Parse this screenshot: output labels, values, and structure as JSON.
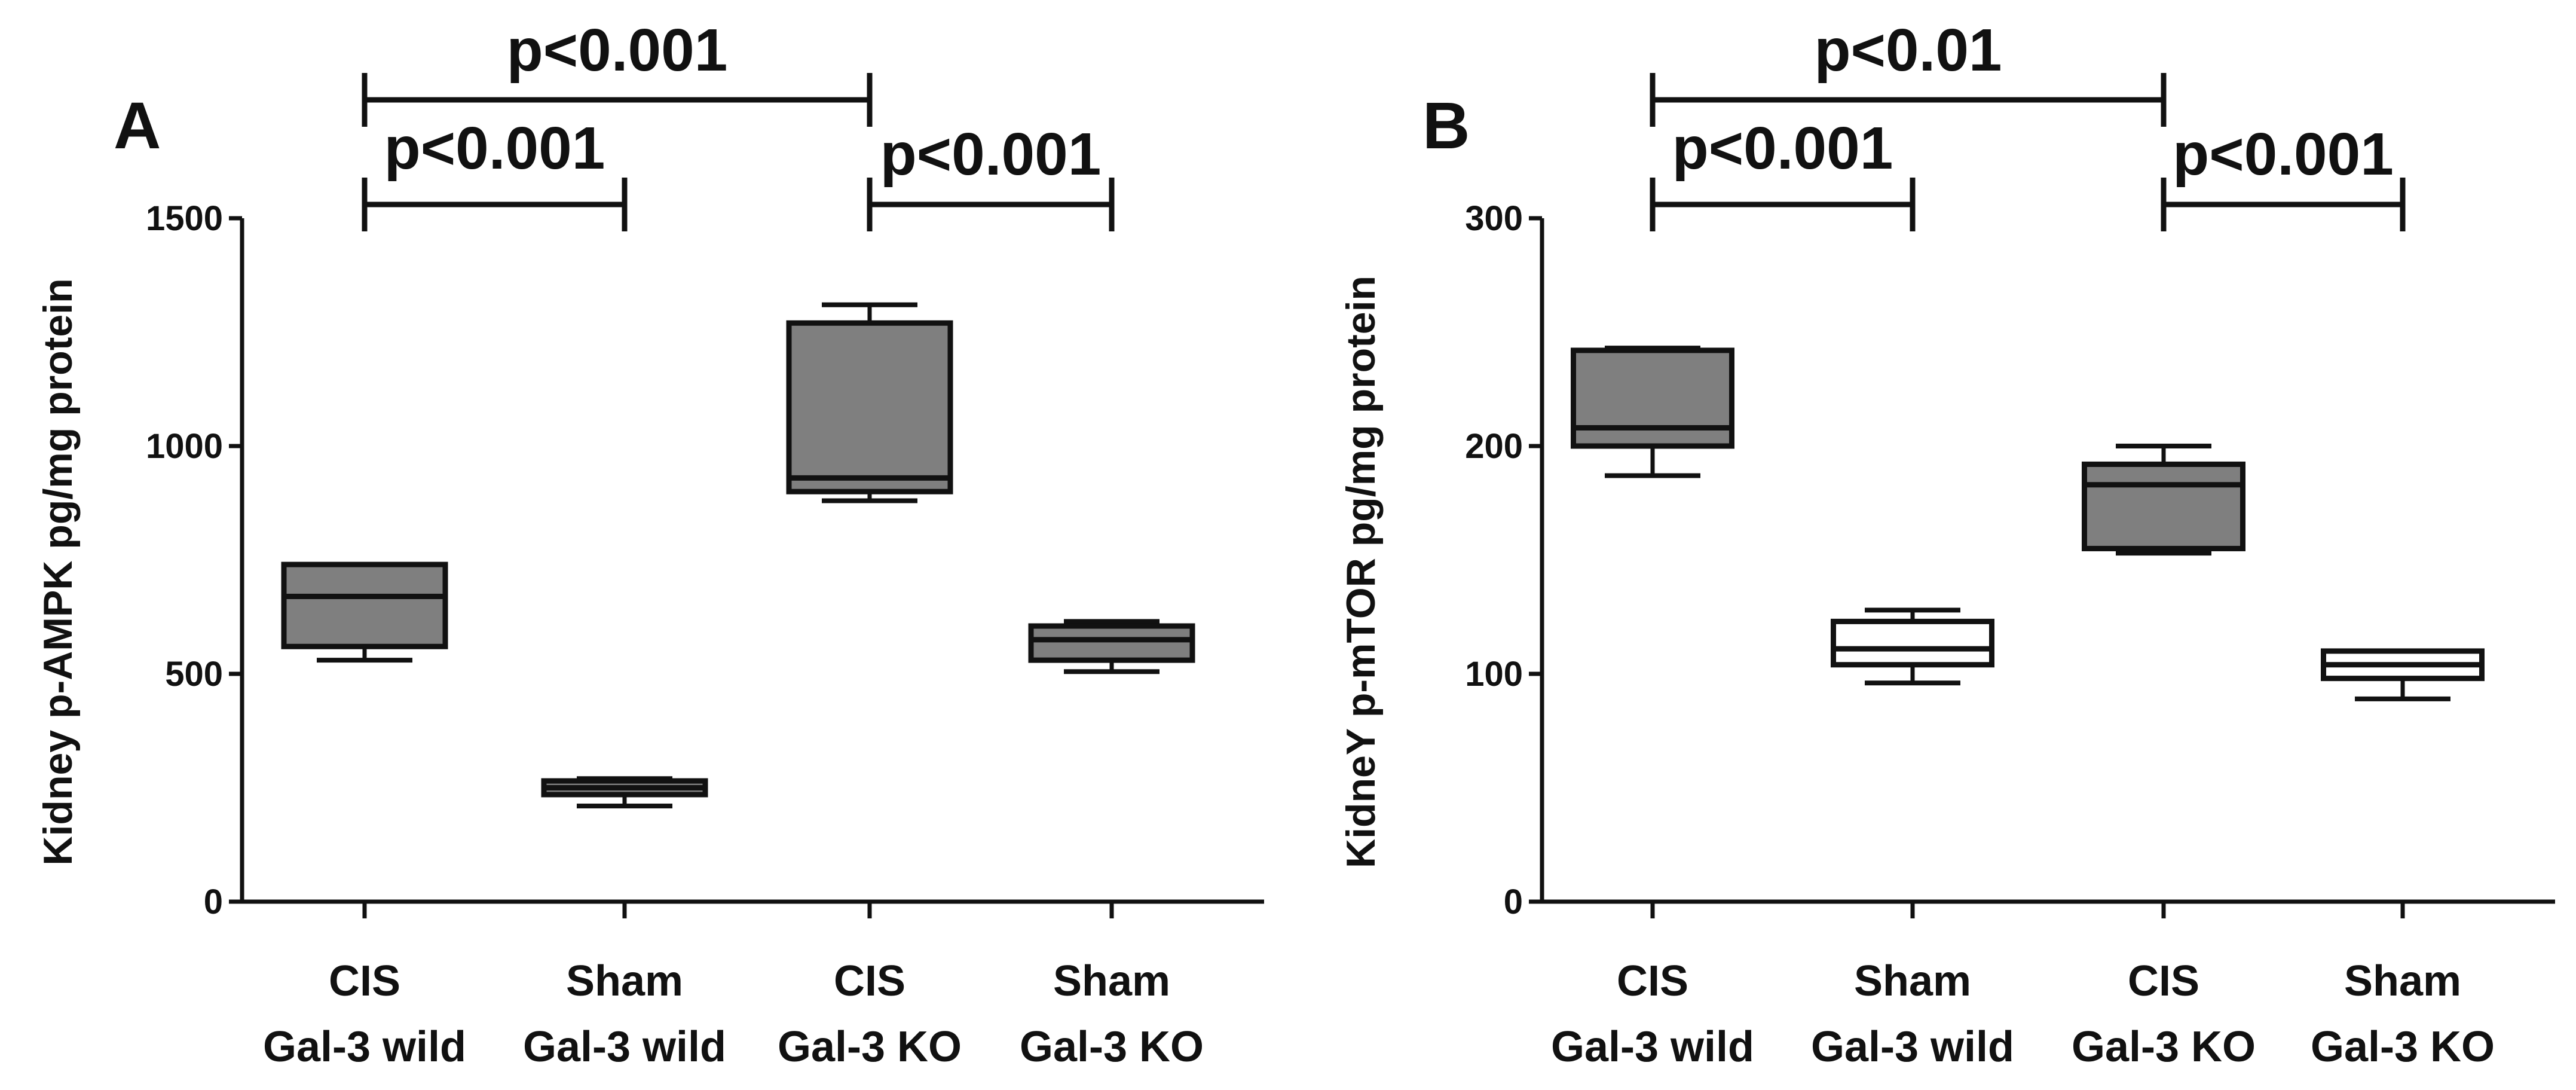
{
  "chart_data": [
    {
      "panel": "A",
      "type": "box",
      "ylabel": "Kidney p-AMPK pg/mg protein",
      "ylim": [
        0,
        1500
      ],
      "yticks": [
        0,
        500,
        1000,
        1500
      ],
      "categories": [
        {
          "line1": "CIS",
          "line2": "Gal-3 wild"
        },
        {
          "line1": "Sham",
          "line2": "Gal-3 wild"
        },
        {
          "line1": "CIS",
          "line2": "Gal-3 KO"
        },
        {
          "line1": "Sham",
          "line2": "Gal-3 KO"
        }
      ],
      "boxes": [
        {
          "min": 530,
          "q1": 560,
          "median": 670,
          "q3": 740,
          "max": 740,
          "fill": "#7f7f7f"
        },
        {
          "min": 210,
          "q1": 235,
          "median": 250,
          "q3": 265,
          "max": 270,
          "fill": "#7f7f7f"
        },
        {
          "min": 880,
          "q1": 900,
          "median": 930,
          "q3": 1270,
          "max": 1310,
          "fill": "#7f7f7f"
        },
        {
          "min": 505,
          "q1": 530,
          "median": 575,
          "q3": 605,
          "max": 615,
          "fill": "#7f7f7f"
        }
      ],
      "significance": [
        {
          "from": 0,
          "to": 2,
          "label": "p<0.001"
        },
        {
          "from": 0,
          "to": 1,
          "label": "p<0.001"
        },
        {
          "from": 2,
          "to": 3,
          "label": "p<0.001"
        }
      ]
    },
    {
      "panel": "B",
      "type": "box",
      "ylabel": "KidneY p-mTOR pg/mg protein",
      "ylim": [
        0,
        300
      ],
      "yticks": [
        0,
        100,
        200,
        300
      ],
      "categories": [
        {
          "line1": "CIS",
          "line2": "Gal-3 wild"
        },
        {
          "line1": "Sham",
          "line2": "Gal-3 wild"
        },
        {
          "line1": "CIS",
          "line2": "Gal-3 KO"
        },
        {
          "line1": "Sham",
          "line2": "Gal-3 KO"
        }
      ],
      "boxes": [
        {
          "min": 187,
          "q1": 200,
          "median": 208,
          "q3": 242,
          "max": 243,
          "fill": "#7f7f7f"
        },
        {
          "min": 96,
          "q1": 104,
          "median": 111,
          "q3": 123,
          "max": 128,
          "fill": "#ffffff"
        },
        {
          "min": 153,
          "q1": 155,
          "median": 183,
          "q3": 192,
          "max": 200,
          "fill": "#7f7f7f"
        },
        {
          "min": 89,
          "q1": 98,
          "median": 104,
          "q3": 110,
          "max": 110,
          "fill": "#ffffff"
        }
      ],
      "significance": [
        {
          "from": 0,
          "to": 2,
          "label": "p<0.01"
        },
        {
          "from": 0,
          "to": 1,
          "label": "p<0.001"
        },
        {
          "from": 2,
          "to": 3,
          "label": "p<0.001"
        }
      ]
    }
  ]
}
